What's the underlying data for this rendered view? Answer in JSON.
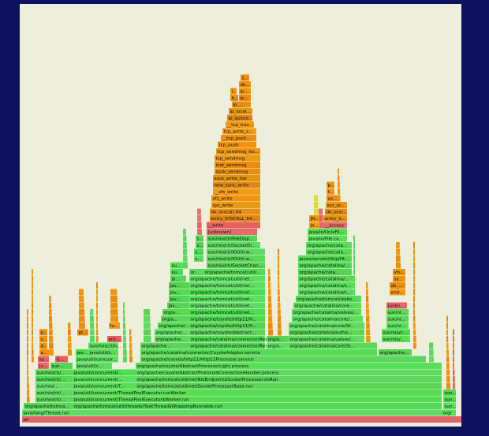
{
  "frames": [
    {
      "label": "all"
    },
    {
      "label": "java/lang/Thread.run"
    },
    {
      "label": "org/"
    },
    {
      "label": "org/apache/tomca..."
    },
    {
      "label": "org/apache/tomcat/util/threads/TaskThread$WrappingRunnable.run"
    },
    {
      "label": "sun..."
    },
    {
      "label": "sun/nio/ch/..."
    },
    {
      "label": "java/util/concurrent/ThreadPoolExecutor$Worker.run"
    },
    {
      "label": "sun..."
    },
    {
      "label": "sun/nio/ch/..."
    },
    {
      "label": "java/util/concurrent/ThreadPoolExecutor.runWorker"
    },
    {
      "label": "sun..."
    },
    {
      "label": "sun/nio/..."
    },
    {
      "label": "java/util/concurrent/T..."
    },
    {
      "label": "org/apache/tomcat/util/net/SocketProcessorBase.run"
    },
    {
      "label": "sun/nio/ch/..."
    },
    {
      "label": "java/util/concurrent/..."
    },
    {
      "label": "org/apache/tomcat/util/net/NioEndpoint$SocketProcessor.doRun"
    },
    {
      "label": "sun/nio/ch/..."
    },
    {
      "label": "java/util/concurrent/..."
    },
    {
      "label": "org/apache/coyote/AbstractProtocol$ConnectionHandler.process"
    },
    {
      "label": "[u..."
    },
    {
      "label": "sun..."
    },
    {
      "label": "java/util/c..."
    },
    {
      "label": "org/apache/coyote/AbstractProcessorLight.process"
    },
    {
      "label": "sp..."
    },
    {
      "label": "G..."
    },
    {
      "label": "java/util/concurr..."
    },
    {
      "label": "org/apache/coyote/http11/Http11Processor.service"
    },
    {
      "label": "a..."
    },
    {
      "label": "jav..."
    },
    {
      "label": "java/util/c..."
    },
    {
      "label": "org/apache/catalina/connector/CoyoteAdapter.service"
    },
    {
      "label": "org/apache..."
    },
    {
      "label": "d..."
    },
    {
      "label": "sun/misc/Un..."
    },
    {
      "label": "org/apache..."
    },
    {
      "label": "org/apache/catalina/connector/Response..."
    },
    {
      "label": "org/a..."
    },
    {
      "label": "org/apache/catalina/core/St..."
    },
    {
      "label": "s..."
    },
    {
      "label": "ent..."
    },
    {
      "label": "org/apache..."
    },
    {
      "label": "org/apache/catalina/connector/Response..."
    },
    {
      "label": "org/a..."
    },
    {
      "label": "org/apache/catalina/valves/..."
    },
    {
      "label": "sun/nio/..."
    },
    {
      "label": "e..."
    },
    {
      "label": "pt..."
    },
    {
      "label": "org/apache/..."
    },
    {
      "label": "org/apache/coyote/Abstract..."
    },
    {
      "label": "org/apache/catalina/authe..."
    },
    {
      "label": "sun/nio/c..."
    },
    {
      "label": "fu..."
    },
    {
      "label": "org/apache/..."
    },
    {
      "label": "org/apache/coyote/http11/H..."
    },
    {
      "label": "org/apache/catalina/core/St..."
    },
    {
      "label": "sun/ni..."
    },
    {
      "label": "org/a..."
    },
    {
      "label": "org/apache/coyote/http11/H..."
    },
    {
      "label": "org/apache/catalina/core/..."
    },
    {
      "label": "sun/ni..."
    },
    {
      "label": "org/a..."
    },
    {
      "label": "org/apache/tomcat/util/net..."
    },
    {
      "label": "org/apache/catalina/valves/..."
    },
    {
      "label": "sun/ni..."
    },
    {
      "label": "jav..."
    },
    {
      "label": "org/apache/tomcat/util/net..."
    },
    {
      "label": "org/apache/catalina/core..."
    },
    {
      "label": "[unkn..."
    },
    {
      "label": "jav..."
    },
    {
      "label": "org/apache/tomcat/util/net..."
    },
    {
      "label": "org/apache/tomcat/webs..."
    },
    {
      "label": "jav..."
    },
    {
      "label": "org/apache/tomcat/util/net..."
    },
    {
      "label": "org/apache/catalina/c..."
    },
    {
      "label": "entr..."
    },
    {
      "label": "jav..."
    },
    {
      "label": "org/apache/tomcat/util/net..."
    },
    {
      "label": "org/apache/catalina/s..."
    },
    {
      "label": "do_..."
    },
    {
      "label": "ja..."
    },
    {
      "label": "org/apache/tomcat/util/net..."
    },
    {
      "label": "org/apache/catalina/..."
    },
    {
      "label": "sy..."
    },
    {
      "label": "su..."
    },
    {
      "label": "or..."
    },
    {
      "label": "org/apache/tomcat/util/..."
    },
    {
      "label": "org/apache/cata..."
    },
    {
      "label": "vfs..."
    },
    {
      "label": "su..."
    },
    {
      "label": "sun/nio/ch/SocketChan..."
    },
    {
      "label": "org/apache/catalina/..."
    },
    {
      "label": "s..."
    },
    {
      "label": "sun/nio/ch/IOUtil.w..."
    },
    {
      "label": "javax/servlet/http/Ht..."
    },
    {
      "label": "s..."
    },
    {
      "label": "sun/nio/ch/IOUtil.w..."
    },
    {
      "label": "org/apache/cata..."
    },
    {
      "label": "s..."
    },
    {
      "label": "sun/nio/ch/SocketDi..."
    },
    {
      "label": "org/apache/cata..."
    },
    {
      "label": "s..."
    },
    {
      "label": "sun/nio/ch/FileDisp..."
    },
    {
      "label": "java/io/File.ca..."
    },
    {
      "label": "[unknown]"
    },
    {
      "label": "java/io/UnixFil..."
    },
    {
      "label": "__write"
    },
    {
      "label": "Ja..."
    },
    {
      "label": "__access"
    },
    {
      "label": "entry_SYSCALL_64..."
    },
    {
      "label": "JN..."
    },
    {
      "label": "entry_S..."
    },
    {
      "label": "do_syscall_64"
    },
    {
      "label": "do_sysc..."
    },
    {
      "label": "sys_write"
    },
    {
      "label": "sys_ac..."
    },
    {
      "label": "vfs_write"
    },
    {
      "label": "us..."
    },
    {
      "label": "__vfs_write"
    },
    {
      "label": "f..."
    },
    {
      "label": "new_sync_write"
    },
    {
      "label": "p..."
    },
    {
      "label": "sock_write_iter"
    },
    {
      "label": "sock_sendmsg"
    },
    {
      "label": "inet_sendmsg"
    },
    {
      "label": "tcp_sendmsg"
    },
    {
      "label": "tcp_sendmsg_loc..."
    },
    {
      "label": "tcp_push"
    },
    {
      "label": "__tcp_push..."
    },
    {
      "label": "tcp_write_x..."
    },
    {
      "label": "__tcp_tran..."
    },
    {
      "label": "ip_queue..."
    },
    {
      "label": "ip_local..."
    },
    {
      "label": "ip_..."
    },
    {
      "label": "h..."
    },
    {
      "label": "ip..."
    },
    {
      "label": "i..."
    },
    {
      "label": "ip..."
    },
    {
      "label": "de..."
    },
    {
      "label": "s..."
    }
  ]
}
